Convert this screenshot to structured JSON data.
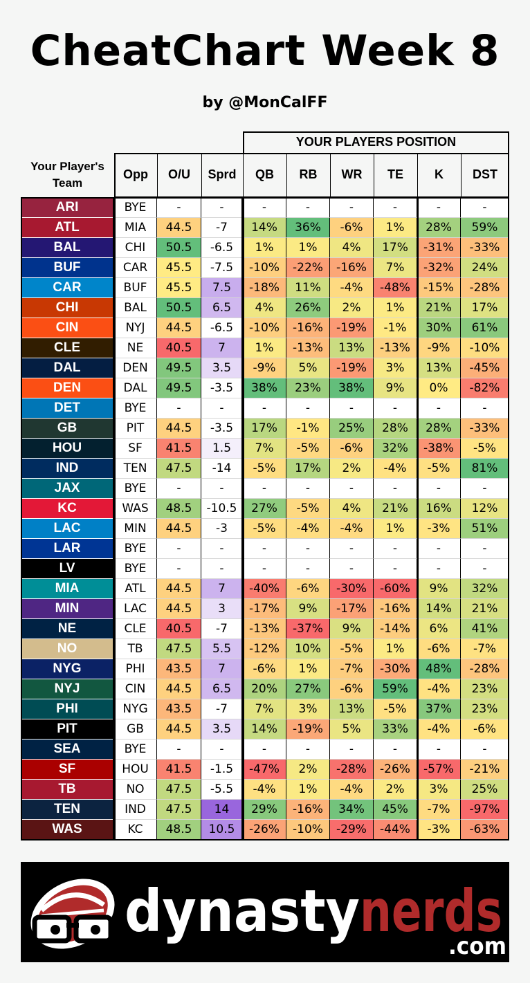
{
  "title": "CheatChart Week 8",
  "subtitle": "by @MonCalFF",
  "headers": {
    "group": "YOUR PLAYERS POSITION",
    "team": "Your Player's Team",
    "opp": "Opp",
    "ou": "O/U",
    "sprd": "Sprd",
    "positions": [
      "QB",
      "RB",
      "WR",
      "TE",
      "K",
      "DST"
    ]
  },
  "logo": {
    "text_main": "dynasty",
    "text_accent": "nerds",
    "text_suffix": ".com"
  },
  "colors": {
    "good": "#63be7b",
    "neutral": "#ffeb84",
    "bad": "#f8696b",
    "spread": "#9966dd",
    "logo_accent": "#b02b2b"
  },
  "chart_data": {
    "type": "table",
    "columns": [
      "Your Player's Team",
      "Opp",
      "O/U",
      "Sprd",
      "QB",
      "RB",
      "WR",
      "TE",
      "K",
      "DST"
    ],
    "rows": [
      {
        "team": "ARI",
        "color": "#97233f",
        "opp": "BYE",
        "ou": "-",
        "sprd": "-",
        "pos": [
          "-",
          "-",
          "-",
          "-",
          "-",
          "-"
        ]
      },
      {
        "team": "ATL",
        "color": "#a71930",
        "opp": "MIA",
        "ou": "44.5",
        "sprd": "-7",
        "pos": [
          "14%",
          "36%",
          "-6%",
          "1%",
          "28%",
          "59%"
        ]
      },
      {
        "team": "BAL",
        "color": "#241773",
        "opp": "CHI",
        "ou": "50.5",
        "sprd": "-6.5",
        "pos": [
          "1%",
          "1%",
          "4%",
          "17%",
          "-31%",
          "-33%"
        ]
      },
      {
        "team": "BUF",
        "color": "#00338d",
        "opp": "CAR",
        "ou": "45.5",
        "sprd": "-7.5",
        "pos": [
          "-10%",
          "-22%",
          "-16%",
          "7%",
          "-32%",
          "24%"
        ]
      },
      {
        "team": "CAR",
        "color": "#0085ca",
        "opp": "BUF",
        "ou": "45.5",
        "sprd": "7.5",
        "pos": [
          "-18%",
          "11%",
          "-4%",
          "-48%",
          "-15%",
          "-28%"
        ]
      },
      {
        "team": "CHI",
        "color": "#c83803",
        "opp": "BAL",
        "ou": "50.5",
        "sprd": "6.5",
        "pos": [
          "4%",
          "26%",
          "2%",
          "1%",
          "21%",
          "17%"
        ]
      },
      {
        "team": "CIN",
        "color": "#fb4f14",
        "opp": "NYJ",
        "ou": "44.5",
        "sprd": "-6.5",
        "pos": [
          "-10%",
          "-16%",
          "-19%",
          "-1%",
          "30%",
          "61%"
        ]
      },
      {
        "team": "CLE",
        "color": "#311d00",
        "opp": "NE",
        "ou": "40.5",
        "sprd": "7",
        "pos": [
          "1%",
          "-13%",
          "13%",
          "-13%",
          "-9%",
          "-10%"
        ]
      },
      {
        "team": "DAL",
        "color": "#041e42",
        "opp": "DEN",
        "ou": "49.5",
        "sprd": "3.5",
        "pos": [
          "-9%",
          "5%",
          "-19%",
          "3%",
          "13%",
          "-45%"
        ]
      },
      {
        "team": "DEN",
        "color": "#fb4f14",
        "opp": "DAL",
        "ou": "49.5",
        "sprd": "-3.5",
        "pos": [
          "38%",
          "23%",
          "38%",
          "9%",
          "0%",
          "-82%"
        ]
      },
      {
        "team": "DET",
        "color": "#0076b6",
        "opp": "BYE",
        "ou": "-",
        "sprd": "-",
        "pos": [
          "-",
          "-",
          "-",
          "-",
          "-",
          "-"
        ]
      },
      {
        "team": "GB",
        "color": "#203731",
        "opp": "PIT",
        "ou": "44.5",
        "sprd": "-3.5",
        "pos": [
          "17%",
          "-1%",
          "25%",
          "28%",
          "28%",
          "-33%"
        ]
      },
      {
        "team": "HOU",
        "color": "#03202f",
        "opp": "SF",
        "ou": "41.5",
        "sprd": "1.5",
        "pos": [
          "7%",
          "-5%",
          "-6%",
          "32%",
          "-38%",
          "-5%"
        ]
      },
      {
        "team": "IND",
        "color": "#002c5f",
        "opp": "TEN",
        "ou": "47.5",
        "sprd": "-14",
        "pos": [
          "-5%",
          "17%",
          "2%",
          "-4%",
          "-5%",
          "81%"
        ]
      },
      {
        "team": "JAX",
        "color": "#006778",
        "opp": "BYE",
        "ou": "-",
        "sprd": "-",
        "pos": [
          "-",
          "-",
          "-",
          "-",
          "-",
          "-"
        ]
      },
      {
        "team": "KC",
        "color": "#e31837",
        "opp": "WAS",
        "ou": "48.5",
        "sprd": "-10.5",
        "pos": [
          "27%",
          "-5%",
          "4%",
          "21%",
          "16%",
          "12%"
        ]
      },
      {
        "team": "LAC",
        "color": "#0080c6",
        "opp": "MIN",
        "ou": "44.5",
        "sprd": "-3",
        "pos": [
          "-5%",
          "-4%",
          "-4%",
          "1%",
          "-3%",
          "51%"
        ]
      },
      {
        "team": "LAR",
        "color": "#003594",
        "opp": "BYE",
        "ou": "-",
        "sprd": "-",
        "pos": [
          "-",
          "-",
          "-",
          "-",
          "-",
          "-"
        ]
      },
      {
        "team": "LV",
        "color": "#000000",
        "opp": "BYE",
        "ou": "-",
        "sprd": "-",
        "pos": [
          "-",
          "-",
          "-",
          "-",
          "-",
          "-"
        ]
      },
      {
        "team": "MIA",
        "color": "#008e97",
        "opp": "ATL",
        "ou": "44.5",
        "sprd": "7",
        "pos": [
          "-40%",
          "-6%",
          "-30%",
          "-60%",
          "9%",
          "32%"
        ]
      },
      {
        "team": "MIN",
        "color": "#4f2683",
        "opp": "LAC",
        "ou": "44.5",
        "sprd": "3",
        "pos": [
          "-17%",
          "9%",
          "-17%",
          "-16%",
          "14%",
          "21%"
        ]
      },
      {
        "team": "NE",
        "color": "#002244",
        "opp": "CLE",
        "ou": "40.5",
        "sprd": "-7",
        "pos": [
          "-13%",
          "-37%",
          "9%",
          "-14%",
          "6%",
          "41%"
        ]
      },
      {
        "team": "NO",
        "color": "#d3bc8d",
        "opp": "TB",
        "ou": "47.5",
        "sprd": "5.5",
        "pos": [
          "-12%",
          "10%",
          "-5%",
          "1%",
          "-6%",
          "-7%"
        ]
      },
      {
        "team": "NYG",
        "color": "#0b2265",
        "opp": "PHI",
        "ou": "43.5",
        "sprd": "7",
        "pos": [
          "-6%",
          "1%",
          "-7%",
          "-30%",
          "48%",
          "-28%"
        ]
      },
      {
        "team": "NYJ",
        "color": "#125740",
        "opp": "CIN",
        "ou": "44.5",
        "sprd": "6.5",
        "pos": [
          "20%",
          "27%",
          "-6%",
          "59%",
          "-4%",
          "23%"
        ]
      },
      {
        "team": "PHI",
        "color": "#004c54",
        "opp": "NYG",
        "ou": "43.5",
        "sprd": "-7",
        "pos": [
          "7%",
          "3%",
          "13%",
          "-5%",
          "37%",
          "23%"
        ]
      },
      {
        "team": "PIT",
        "color": "#000000",
        "opp": "GB",
        "ou": "44.5",
        "sprd": "3.5",
        "pos": [
          "14%",
          "-19%",
          "5%",
          "33%",
          "-4%",
          "-6%"
        ]
      },
      {
        "team": "SEA",
        "color": "#002244",
        "opp": "BYE",
        "ou": "-",
        "sprd": "-",
        "pos": [
          "-",
          "-",
          "-",
          "-",
          "-",
          "-"
        ]
      },
      {
        "team": "SF",
        "color": "#aa0000",
        "opp": "HOU",
        "ou": "41.5",
        "sprd": "-1.5",
        "pos": [
          "-47%",
          "2%",
          "-28%",
          "-26%",
          "-57%",
          "-21%"
        ]
      },
      {
        "team": "TB",
        "color": "#a71930",
        "opp": "NO",
        "ou": "47.5",
        "sprd": "-5.5",
        "pos": [
          "-4%",
          "1%",
          "-4%",
          "2%",
          "3%",
          "25%"
        ]
      },
      {
        "team": "TEN",
        "color": "#0c2340",
        "opp": "IND",
        "ou": "47.5",
        "sprd": "14",
        "pos": [
          "29%",
          "-16%",
          "34%",
          "45%",
          "-7%",
          "-97%"
        ]
      },
      {
        "team": "WAS",
        "color": "#5a1414",
        "opp": "KC",
        "ou": "48.5",
        "sprd": "10.5",
        "pos": [
          "-26%",
          "-10%",
          "-29%",
          "-44%",
          "-3%",
          "-63%"
        ]
      }
    ]
  }
}
